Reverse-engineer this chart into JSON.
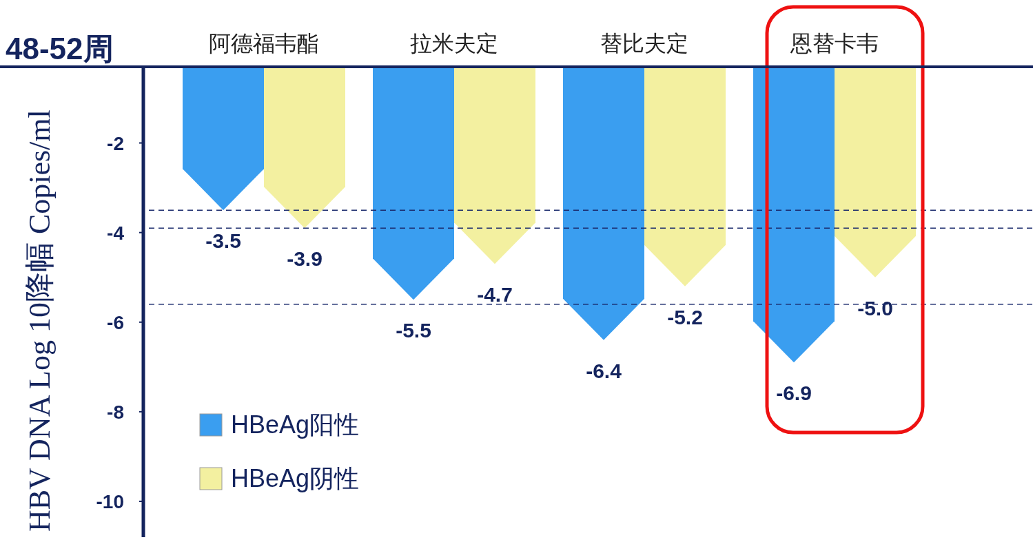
{
  "chart_data": {
    "type": "bar",
    "categories": [
      "阿德福韦酯",
      "拉米夫定",
      "替比夫定",
      "恩替卡韦"
    ],
    "series": [
      {
        "name": "HBeAg阳性",
        "color": "#3a9ef0",
        "values": [
          -3.5,
          -5.5,
          -6.4,
          -6.9
        ],
        "value_labels": [
          "-3.5",
          "-5.5",
          "-6.4",
          "-6.9"
        ]
      },
      {
        "name": "HBeAg阴性",
        "color": "#f3f0a0",
        "values": [
          -3.9,
          -4.7,
          -5.2,
          -5.0
        ],
        "value_labels": [
          "-3.9",
          "-4.7",
          "-5.2",
          "-5.0"
        ]
      }
    ],
    "ylabel": "HBV DNA Log 10降幅 Copies/ml",
    "ylim": [
      -10.8,
      -0.3
    ],
    "yticks": [
      -2,
      -4,
      -6,
      -8,
      -10
    ],
    "ref_lines": [
      {
        "axis": "y",
        "value": -3.5,
        "line_style": "dashed",
        "color": "#1a2a6c"
      },
      {
        "axis": "y",
        "value": -3.9,
        "line_style": "dashed",
        "color": "#1a2a6c"
      },
      {
        "axis": "y",
        "value": -5.6,
        "line_style": "dashed",
        "color": "#1a2a6c"
      }
    ],
    "annotations": [
      "48-52周"
    ],
    "legend": "bottom left",
    "grid": false
  }
}
